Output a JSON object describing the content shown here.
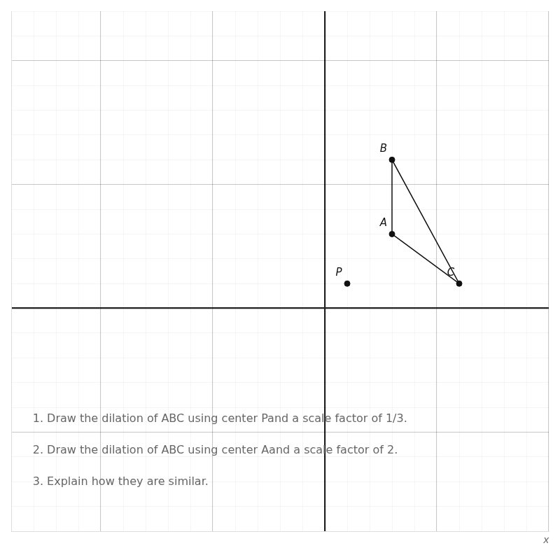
{
  "chart_data": {
    "type": "scatter",
    "xlabel": "x",
    "point_labels": [
      "A",
      "B",
      "C",
      "P"
    ],
    "x": [
      3,
      3,
      6,
      1
    ],
    "values": [
      3,
      6,
      1,
      1
    ],
    "triangle": [
      "A",
      "B",
      "C"
    ],
    "color": "#111111",
    "xlim": [
      -14,
      10
    ],
    "ylim": [
      -9,
      12
    ],
    "xticks": [
      -14,
      -13,
      -12,
      -11,
      -10,
      -9,
      -8,
      -7,
      -6,
      -5,
      -4,
      -3,
      -2,
      -1,
      0,
      1,
      2,
      3,
      4,
      5,
      6,
      7,
      8,
      9,
      10
    ],
    "yticks": [
      -9,
      -8,
      -7,
      -6,
      -5,
      -4,
      -3,
      -2,
      -1,
      0,
      1,
      2,
      3,
      4,
      5,
      6,
      7,
      8,
      9,
      10,
      11,
      12
    ],
    "grid": true,
    "tick_labels": false,
    "legend": false,
    "annotations": [
      "1. Draw the dilation of ABC using center Pand a scale factor of 1/3.",
      "2. Draw the dilation of ABC using center Aand a scale factor of 2.",
      "3. Explain how they are similar."
    ]
  }
}
